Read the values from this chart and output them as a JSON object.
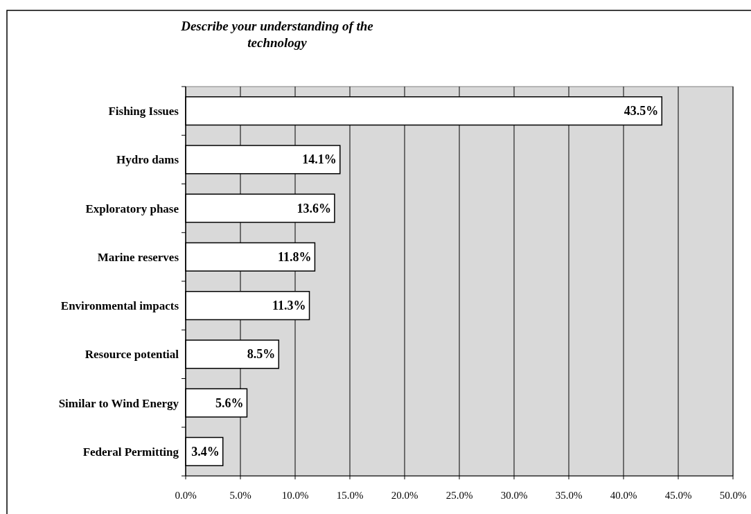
{
  "chart_data": {
    "type": "bar",
    "orientation": "horizontal",
    "title": "Describe your understanding of the technology",
    "categories": [
      "Fishing Issues",
      "Hydro dams",
      "Exploratory phase",
      "Marine reserves",
      "Environmental impacts",
      "Resource potential",
      "Similar to Wind Energy",
      "Federal Permitting"
    ],
    "values": [
      43.5,
      14.1,
      13.6,
      11.8,
      11.3,
      8.5,
      5.6,
      3.4
    ],
    "value_labels": [
      "43.5%",
      "14.1%",
      "13.6%",
      "11.8%",
      "11.3%",
      "8.5%",
      "5.6%",
      "3.4%"
    ],
    "color": "#ffffff",
    "xlim": [
      0,
      50
    ],
    "xticks": [
      {
        "value": 0,
        "label": "0.0%"
      },
      {
        "value": 5,
        "label": "5.0%"
      },
      {
        "value": 10,
        "label": "10.0%"
      },
      {
        "value": 15,
        "label": "15.0%"
      },
      {
        "value": 20,
        "label": "20.0%"
      },
      {
        "value": 25,
        "label": "25.0%"
      },
      {
        "value": 30,
        "label": "30.0%"
      },
      {
        "value": 35,
        "label": "35.0%"
      },
      {
        "value": 40,
        "label": "40.0%"
      },
      {
        "value": 45,
        "label": "45.0%"
      },
      {
        "value": 50,
        "label": "50.0%"
      }
    ],
    "grid": "x"
  }
}
